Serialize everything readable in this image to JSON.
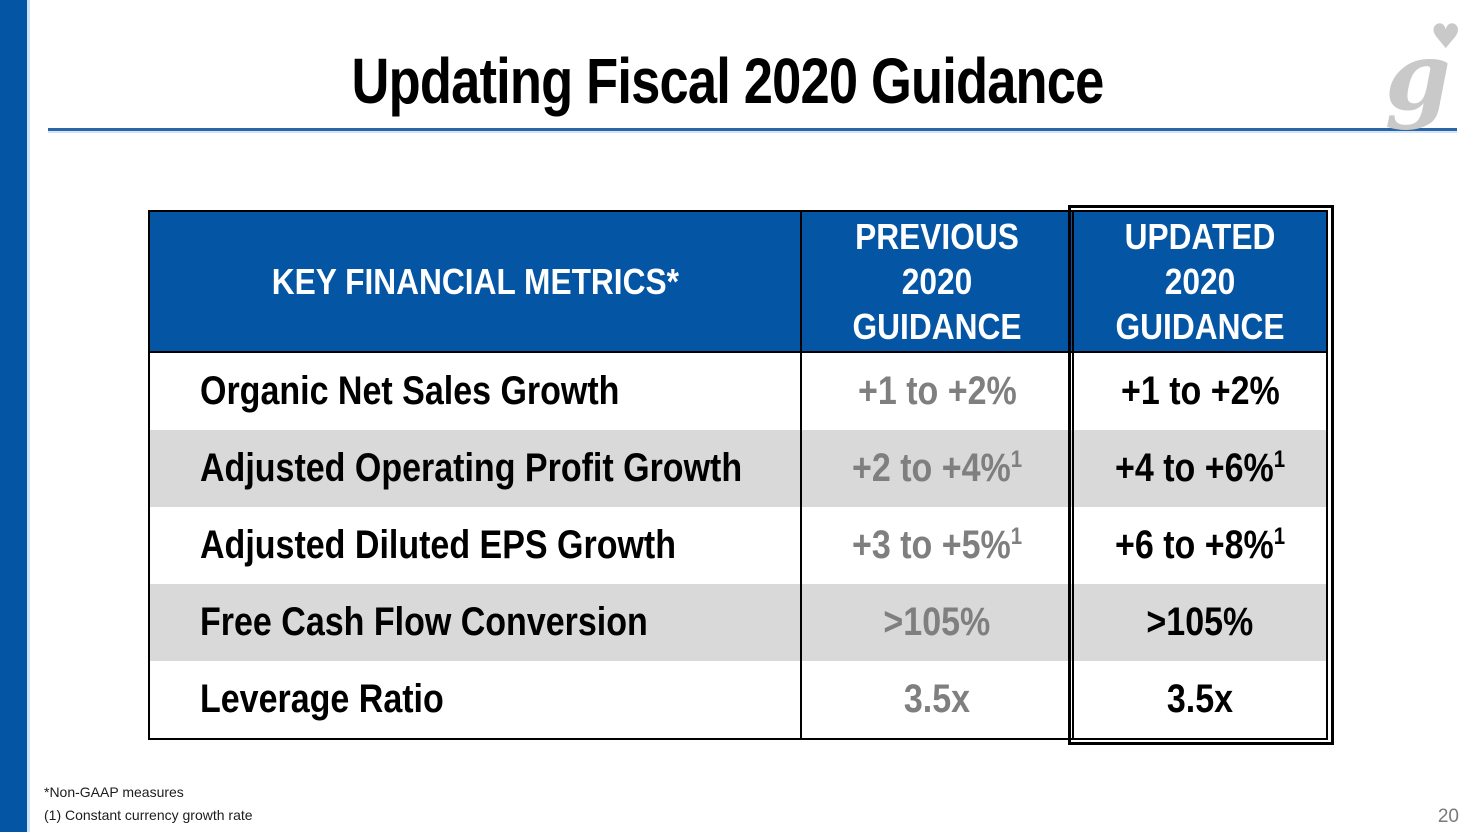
{
  "slide": {
    "title": "Updating Fiscal 2020 Guidance",
    "page_number": "20",
    "logo_glyph": "g",
    "logo_heart": "♥",
    "footnotes": {
      "non_gaap": "*Non-GAAP measures",
      "constant_currency": "(1) Constant currency growth rate"
    }
  },
  "table": {
    "header": {
      "metrics": "KEY FINANCIAL METRICS*",
      "previous_lines": [
        "PREVIOUS",
        "2020",
        "GUIDANCE"
      ],
      "updated_lines": [
        "UPDATED",
        "2020",
        "GUIDANCE"
      ]
    },
    "rows": [
      {
        "metric": "Organic Net Sales Growth",
        "previous": "+1 to +2%",
        "previous_sup": "",
        "updated": "+1 to +2%",
        "updated_sup": ""
      },
      {
        "metric": "Adjusted Operating Profit Growth",
        "previous": "+2 to +4%",
        "previous_sup": "1",
        "updated": "+4 to +6%",
        "updated_sup": "1"
      },
      {
        "metric": "Adjusted Diluted EPS Growth",
        "previous": "+3 to +5%",
        "previous_sup": "1",
        "updated": "+6 to +8%",
        "updated_sup": "1"
      },
      {
        "metric": "Free Cash Flow Conversion",
        "previous": ">105%",
        "previous_sup": "",
        "updated": ">105%",
        "updated_sup": ""
      },
      {
        "metric": "Leverage Ratio",
        "previous": "3.5x",
        "previous_sup": "",
        "updated": "3.5x",
        "updated_sup": ""
      }
    ]
  },
  "colors": {
    "brand_blue": "#0455A4",
    "row_alt_gray": "#D9D9D9",
    "previous_text_gray": "#7F7F7F",
    "logo_gray": "#C9C9C9",
    "underline_blue": "#2A65A8"
  }
}
